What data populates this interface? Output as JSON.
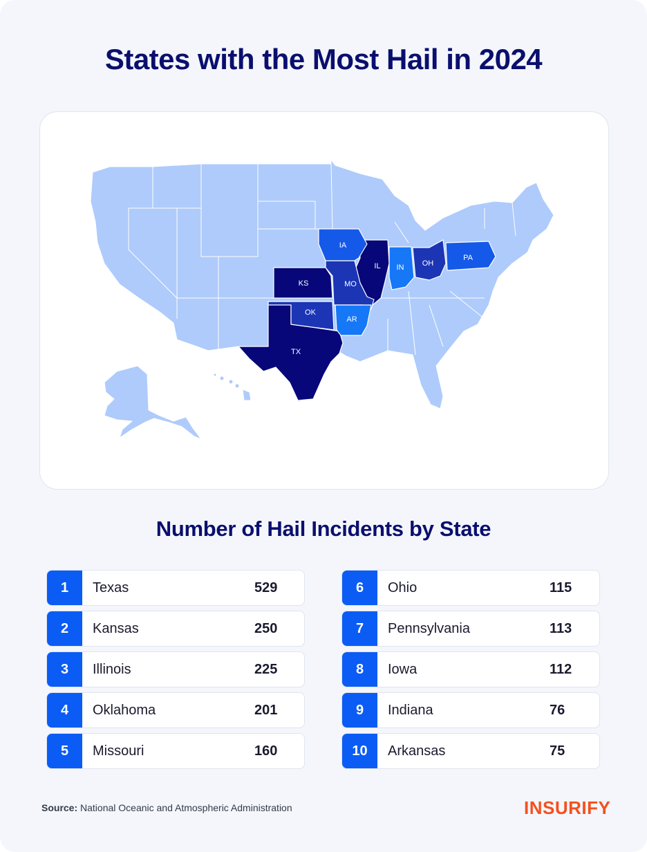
{
  "title": "States with the Most Hail in 2024",
  "subtitle": "Number of Hail Incidents by State",
  "map": {
    "labels": {
      "ia": "IA",
      "il": "IL",
      "in": "IN",
      "oh": "OH",
      "pa": "PA",
      "ks": "KS",
      "mo": "MO",
      "ok": "OK",
      "ar": "AR",
      "tx": "TX"
    },
    "colors": {
      "base": "#aecbfb",
      "darkest": "#07077a",
      "dark": "#1b35b5",
      "medium": "#1559e8",
      "light": "#1677f7",
      "border": "#ffffff"
    }
  },
  "rankings": [
    {
      "rank": "1",
      "state": "Texas",
      "value": "529"
    },
    {
      "rank": "2",
      "state": "Kansas",
      "value": "250"
    },
    {
      "rank": "3",
      "state": "Illinois",
      "value": "225"
    },
    {
      "rank": "4",
      "state": "Oklahoma",
      "value": "201"
    },
    {
      "rank": "5",
      "state": "Missouri",
      "value": "160"
    },
    {
      "rank": "6",
      "state": "Ohio",
      "value": "115"
    },
    {
      "rank": "7",
      "state": "Pennsylvania",
      "value": "113"
    },
    {
      "rank": "8",
      "state": "Iowa",
      "value": "112"
    },
    {
      "rank": "9",
      "state": "Indiana",
      "value": "76"
    },
    {
      "rank": "10",
      "state": "Arkansas",
      "value": "75"
    }
  ],
  "source": {
    "label": "Source:",
    "text": "National Oceanic and Atmospheric Administration"
  },
  "logo": "INSURIFY"
}
